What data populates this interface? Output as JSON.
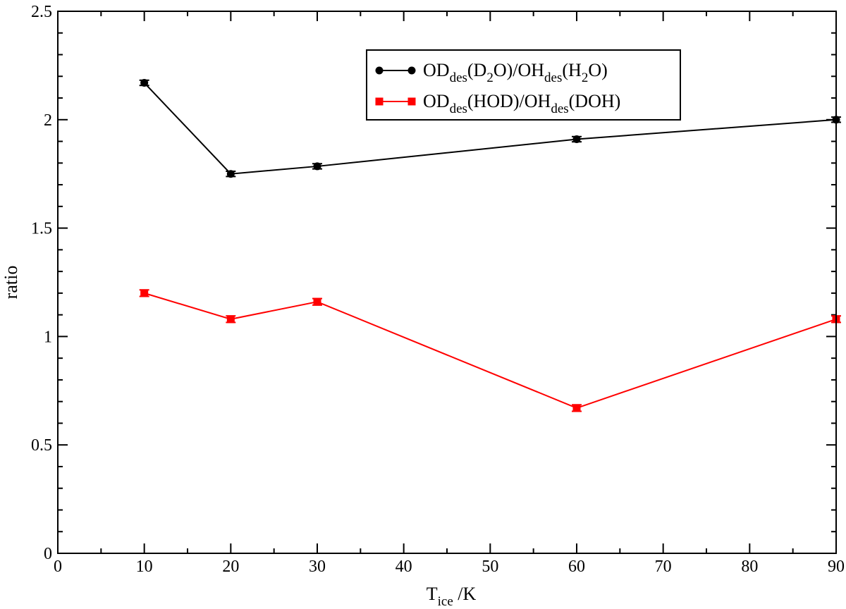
{
  "chart_data": {
    "type": "line",
    "xlabel": {
      "main": "T",
      "sub": "ice",
      "rest": " /K"
    },
    "ylabel": "ratio",
    "xlim": [
      0,
      90
    ],
    "ylim": [
      0,
      2.5
    ],
    "x_major_ticks": [
      0,
      10,
      20,
      30,
      40,
      50,
      60,
      70,
      80,
      90
    ],
    "x_tick_labels": [
      "0",
      "10",
      "20",
      "30",
      "40",
      "50",
      "60",
      "70",
      "80",
      "90"
    ],
    "x_minor_step": 5,
    "y_major_ticks": [
      0,
      0.5,
      1,
      1.5,
      2,
      2.5
    ],
    "y_tick_labels": [
      "0",
      "0.5",
      "1",
      "1.5",
      "2",
      "2.5"
    ],
    "y_minor_step": 0.1,
    "grid": false,
    "legend_position": "top-right",
    "series": [
      {
        "name_parts": [
          [
            "OD",
            ""
          ],
          [
            "des",
            "sub"
          ],
          [
            "(D",
            ""
          ],
          [
            "2",
            "sub"
          ],
          [
            "O)/OH",
            ""
          ],
          [
            "des",
            "sub"
          ],
          [
            "(H",
            ""
          ],
          [
            "2",
            "sub"
          ],
          [
            "O)",
            ""
          ]
        ],
        "color": "#000000",
        "marker": "circle",
        "x": [
          10,
          20,
          30,
          60,
          90
        ],
        "y": [
          2.17,
          1.75,
          1.785,
          1.91,
          2.0
        ],
        "err": [
          0.012,
          0.012,
          0.012,
          0.012,
          0.012
        ]
      },
      {
        "name_parts": [
          [
            "OD",
            ""
          ],
          [
            "des",
            "sub"
          ],
          [
            "(HOD)/OH",
            ""
          ],
          [
            "des",
            "sub"
          ],
          [
            "(DOH)",
            ""
          ]
        ],
        "color": "#ff0000",
        "marker": "square",
        "x": [
          10,
          20,
          30,
          60,
          90
        ],
        "y": [
          1.2,
          1.08,
          1.16,
          0.67,
          1.08
        ],
        "err": [
          0.015,
          0.015,
          0.015,
          0.015,
          0.015
        ]
      }
    ]
  }
}
